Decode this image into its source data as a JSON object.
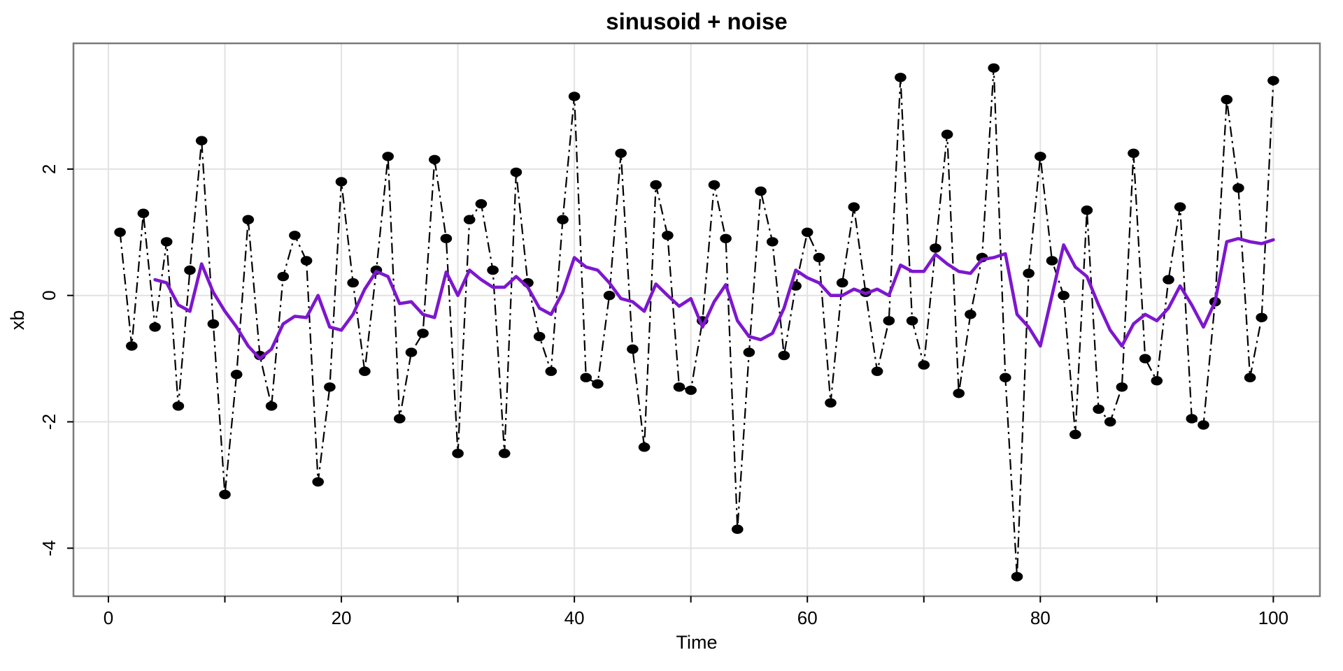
{
  "chart_data": {
    "type": "line",
    "title": "sinusoid + noise",
    "xlabel": "Time",
    "ylabel": "xb",
    "xlim": [
      -3,
      104
    ],
    "ylim": [
      -4.76,
      3.99
    ],
    "x_gridline_step": 10,
    "x_tick_step": 10,
    "x_tick_labels": [
      0,
      20,
      40,
      60,
      80,
      100
    ],
    "y_ticks": [
      -4,
      -2,
      0,
      2
    ],
    "grid_on": true,
    "legend": "none",
    "colors": {
      "background": "#ffffff",
      "grid": "#e2e2e2",
      "border": "#7a7a7a",
      "tick": "#000000",
      "points": "#000000",
      "dashed_line": "#000000",
      "smoother": "#7d17cf"
    },
    "series": [
      {
        "name": "xb",
        "style": "points-with-dotdash-line",
        "color": "#000000",
        "x": [
          1,
          2,
          3,
          4,
          5,
          6,
          7,
          8,
          9,
          10,
          11,
          12,
          13,
          14,
          15,
          16,
          17,
          18,
          19,
          20,
          21,
          22,
          23,
          24,
          25,
          26,
          27,
          28,
          29,
          30,
          31,
          32,
          33,
          34,
          35,
          36,
          37,
          38,
          39,
          40,
          41,
          42,
          43,
          44,
          45,
          46,
          47,
          48,
          49,
          50,
          51,
          52,
          53,
          54,
          55,
          56,
          57,
          58,
          59,
          60,
          61,
          62,
          63,
          64,
          65,
          66,
          67,
          68,
          69,
          70,
          71,
          72,
          73,
          74,
          75,
          76,
          77,
          78,
          79,
          80,
          81,
          82,
          83,
          84,
          85,
          86,
          87,
          88,
          89,
          90,
          91,
          92,
          93,
          94,
          95,
          96,
          97,
          98,
          99,
          100
        ],
        "values": [
          1.0,
          -0.8,
          1.3,
          -0.5,
          0.85,
          -1.75,
          0.4,
          2.45,
          -0.45,
          -3.15,
          -1.25,
          1.2,
          -0.95,
          -1.75,
          0.3,
          0.95,
          0.55,
          -2.95,
          -1.45,
          1.8,
          0.2,
          -1.2,
          0.4,
          2.2,
          -1.95,
          -0.9,
          -0.6,
          2.15,
          0.9,
          -2.5,
          1.2,
          1.45,
          0.4,
          -2.5,
          1.95,
          0.2,
          -0.65,
          -1.2,
          1.2,
          3.15,
          -1.3,
          -1.4,
          0.0,
          2.25,
          -0.85,
          -2.4,
          1.75,
          0.95,
          -1.45,
          -1.5,
          -0.4,
          1.75,
          0.9,
          -3.7,
          -0.9,
          1.65,
          0.85,
          -0.95,
          0.15,
          1.0,
          0.6,
          -1.7,
          0.2,
          1.4,
          0.05,
          -1.2,
          -0.4,
          3.45,
          -0.4,
          -1.1,
          0.75,
          2.55,
          -1.55,
          -0.3,
          0.6,
          3.6,
          -1.3,
          -4.45,
          0.35,
          2.2,
          0.55,
          0.0,
          -2.2,
          1.35,
          -1.8,
          -2.0,
          -1.45,
          2.25,
          -1.0,
          -1.35,
          0.25,
          1.4,
          -1.95,
          -2.05,
          -0.1,
          3.1,
          1.7,
          -1.3,
          -0.35,
          3.4
        ]
      },
      {
        "name": "smoother",
        "style": "solid-line",
        "color": "#7d17cf",
        "x": [
          4,
          5,
          6,
          7,
          8,
          9,
          10,
          11,
          12,
          13,
          14,
          15,
          16,
          17,
          18,
          19,
          20,
          21,
          22,
          23,
          24,
          25,
          26,
          27,
          28,
          29,
          30,
          31,
          32,
          33,
          34,
          35,
          36,
          37,
          38,
          39,
          40,
          41,
          42,
          43,
          44,
          45,
          46,
          47,
          48,
          49,
          50,
          51,
          52,
          53,
          54,
          55,
          56,
          57,
          58,
          59,
          60,
          61,
          62,
          63,
          64,
          65,
          66,
          67,
          68,
          69,
          70,
          71,
          72,
          73,
          74,
          75,
          76,
          77,
          78,
          79,
          80,
          81,
          82,
          83,
          84,
          85,
          86,
          87,
          88,
          89,
          90,
          91,
          92,
          93,
          94,
          95,
          96,
          97,
          98,
          99,
          100
        ],
        "values": [
          0.25,
          0.2,
          -0.15,
          -0.25,
          0.5,
          0.05,
          -0.25,
          -0.5,
          -0.8,
          -1.0,
          -0.85,
          -0.45,
          -0.33,
          -0.35,
          0.0,
          -0.5,
          -0.55,
          -0.3,
          0.1,
          0.38,
          0.3,
          -0.13,
          -0.1,
          -0.3,
          -0.35,
          0.37,
          0.0,
          0.4,
          0.25,
          0.13,
          0.13,
          0.3,
          0.13,
          -0.2,
          -0.3,
          0.05,
          0.6,
          0.45,
          0.4,
          0.2,
          -0.05,
          -0.1,
          -0.25,
          0.18,
          0.0,
          -0.17,
          -0.05,
          -0.5,
          -0.1,
          0.17,
          -0.4,
          -0.65,
          -0.7,
          -0.6,
          -0.2,
          0.4,
          0.28,
          0.2,
          0.0,
          0.0,
          0.1,
          0.03,
          0.1,
          0.0,
          0.48,
          0.38,
          0.38,
          0.65,
          0.5,
          0.38,
          0.35,
          0.57,
          0.6,
          0.66,
          -0.3,
          -0.5,
          -0.8,
          0.0,
          0.8,
          0.45,
          0.3,
          -0.15,
          -0.55,
          -0.8,
          -0.45,
          -0.3,
          -0.4,
          -0.2,
          0.15,
          -0.15,
          -0.5,
          -0.1,
          0.85,
          0.9,
          0.85,
          0.82,
          0.88
        ]
      }
    ]
  }
}
